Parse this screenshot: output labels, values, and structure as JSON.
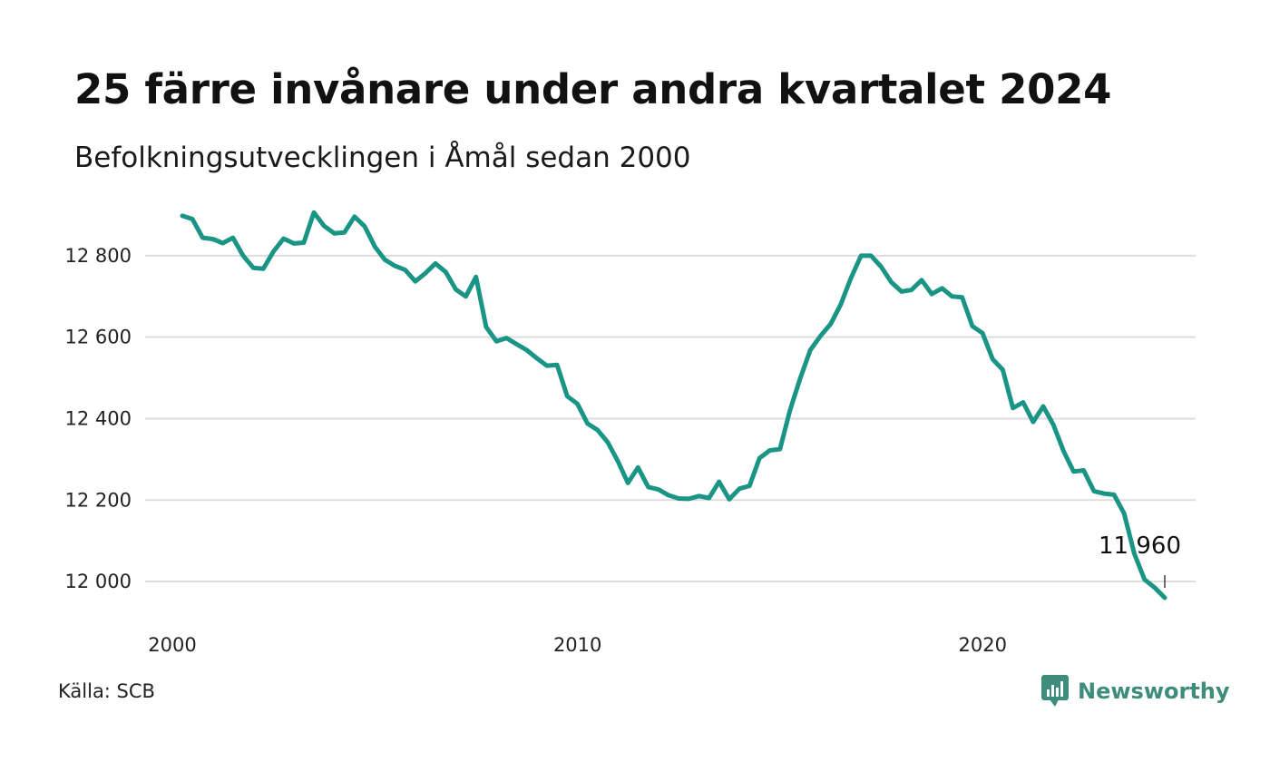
{
  "header": {
    "title": "25 färre invånare under andra kvartalet 2024",
    "subtitle": "Befolkningsutvecklingen i Åmål sedan 2000"
  },
  "footer": {
    "source": "Källa: SCB",
    "brand": "Newsworthy",
    "brand_icon": "bar-chart-speech-bubble-icon"
  },
  "colors": {
    "line": "#1a9585",
    "grid": "#dddddd",
    "brand": "#3d8c7c"
  },
  "chart_data": {
    "type": "line",
    "title": "25 färre invånare under andra kvartalet 2024",
    "subtitle": "Befolkningsutvecklingen i Åmål sedan 2000",
    "xlabel": "",
    "ylabel": "",
    "xlim": [
      "2000-01-01",
      "2024-06-30"
    ],
    "ylim": [
      11940,
      12920
    ],
    "x_ticks": [
      {
        "value": "2000-01-01",
        "label": "2000"
      },
      {
        "value": "2010-01-01",
        "label": "2010"
      },
      {
        "value": "2020-01-01",
        "label": "2020"
      }
    ],
    "y_ticks": [
      {
        "value": 12000,
        "label": "12 000"
      },
      {
        "value": 12200,
        "label": "12 200"
      },
      {
        "value": 12400,
        "label": "12 400"
      },
      {
        "value": 12600,
        "label": "12 600"
      },
      {
        "value": 12800,
        "label": "12 800"
      }
    ],
    "grid": "horizontal",
    "legend": "none",
    "end_label": "11 960",
    "series": [
      {
        "x": [
          "2000-03-31",
          "2000-06-30",
          "2000-09-30",
          "2000-12-31",
          "2001-03-31",
          "2001-06-30",
          "2001-09-30",
          "2001-12-31",
          "2002-03-31",
          "2002-06-30",
          "2002-09-30",
          "2002-12-31",
          "2003-03-31",
          "2003-06-30",
          "2003-09-30",
          "2003-12-31",
          "2004-03-31",
          "2004-06-30",
          "2004-09-30",
          "2004-12-31",
          "2005-03-31",
          "2005-06-30",
          "2005-09-30",
          "2005-12-31",
          "2006-03-31",
          "2006-06-30",
          "2006-09-30",
          "2006-12-31",
          "2007-03-31",
          "2007-06-30",
          "2007-09-30",
          "2007-12-31",
          "2008-03-31",
          "2008-06-30",
          "2008-09-30",
          "2008-12-31",
          "2009-03-31",
          "2009-06-30",
          "2009-09-30",
          "2009-12-31",
          "2010-03-31",
          "2010-06-30",
          "2010-09-30",
          "2010-12-31",
          "2011-03-31",
          "2011-06-30",
          "2011-09-30",
          "2011-12-31",
          "2012-03-31",
          "2012-06-30",
          "2012-09-30",
          "2012-12-31",
          "2013-03-31",
          "2013-06-30",
          "2013-09-30",
          "2013-12-31",
          "2014-03-31",
          "2014-06-30",
          "2014-09-30",
          "2014-12-31",
          "2015-03-31",
          "2015-06-30",
          "2015-09-30",
          "2015-12-31",
          "2016-03-31",
          "2016-06-30",
          "2016-09-30",
          "2016-12-31",
          "2017-03-31",
          "2017-06-30",
          "2017-09-30",
          "2017-12-31",
          "2018-03-31",
          "2018-06-30",
          "2018-09-30",
          "2018-12-31",
          "2019-03-31",
          "2019-06-30",
          "2019-09-30",
          "2019-12-31",
          "2020-03-31",
          "2020-06-30",
          "2020-09-30",
          "2020-12-31",
          "2021-03-31",
          "2021-06-30",
          "2021-09-30",
          "2021-12-31",
          "2022-03-31",
          "2022-06-30",
          "2022-09-30",
          "2022-12-31",
          "2023-03-31",
          "2023-06-30",
          "2023-09-30",
          "2023-12-31",
          "2024-03-31",
          "2024-06-30"
        ],
        "values": [
          12898,
          12890,
          12844,
          12841,
          12831,
          12844,
          12800,
          12770,
          12768,
          12810,
          12842,
          12830,
          12832,
          12906,
          12873,
          12855,
          12857,
          12896,
          12872,
          12822,
          12790,
          12775,
          12765,
          12737,
          12757,
          12781,
          12760,
          12717,
          12700,
          12748,
          12625,
          12590,
          12598,
          12583,
          12568,
          12548,
          12530,
          12532,
          12455,
          12436,
          12388,
          12372,
          12342,
          12295,
          12242,
          12280,
          12232,
          12226,
          12212,
          12204,
          12203,
          12210,
          12205,
          12245,
          12202,
          12228,
          12235,
          12303,
          12322,
          12325,
          12420,
          12498,
          12568,
          12603,
          12632,
          12680,
          12745,
          12800,
          12800,
          12773,
          12735,
          12712,
          12716,
          12740,
          12706,
          12720,
          12700,
          12698,
          12627,
          12610,
          12546,
          12520,
          12426,
          12440,
          12392,
          12430,
          12385,
          12320,
          12270,
          12273,
          12222,
          12216,
          12213,
          12167,
          12068,
          12005,
          11985,
          11960
        ]
      }
    ]
  }
}
